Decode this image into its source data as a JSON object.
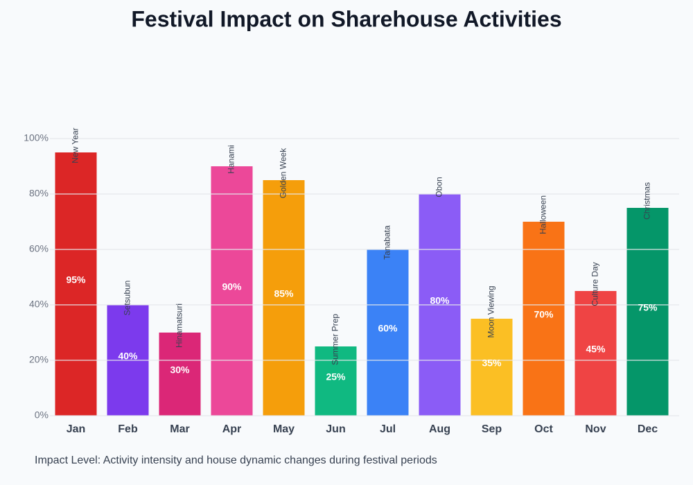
{
  "chart_data": {
    "type": "bar",
    "title": "Festival Impact on Sharehouse Activities",
    "categories": [
      "Jan",
      "Feb",
      "Mar",
      "Apr",
      "May",
      "Jun",
      "Jul",
      "Aug",
      "Sep",
      "Oct",
      "Nov",
      "Dec"
    ],
    "values": [
      95,
      40,
      30,
      90,
      85,
      25,
      60,
      80,
      35,
      70,
      45,
      75
    ],
    "value_labels": [
      "95%",
      "40%",
      "30%",
      "90%",
      "85%",
      "25%",
      "60%",
      "80%",
      "35%",
      "70%",
      "45%",
      "75%"
    ],
    "annotations": [
      "New Year",
      "Setsubun",
      "Hinamatsuri",
      "Hanami",
      "Golden Week",
      "Summer Prep",
      "Tanabata",
      "Obon",
      "Moon Viewing",
      "Halloween",
      "Culture Day",
      "Christmas"
    ],
    "colors": [
      "#dc2626",
      "#7c3aed",
      "#db2777",
      "#ec4899",
      "#f59e0b",
      "#10b981",
      "#3b82f6",
      "#8b5cf6",
      "#fbbf24",
      "#f97316",
      "#ef4444",
      "#059669"
    ],
    "ylim": [
      0,
      100
    ],
    "yticks": [
      {
        "value": 0,
        "label": "0%"
      },
      {
        "value": 20,
        "label": "20%"
      },
      {
        "value": 40,
        "label": "40%"
      },
      {
        "value": 60,
        "label": "60%"
      },
      {
        "value": 80,
        "label": "80%"
      },
      {
        "value": 100,
        "label": "100%"
      }
    ],
    "grid": true,
    "caption": "Impact Level: Activity intensity and house dynamic changes during festival periods"
  }
}
